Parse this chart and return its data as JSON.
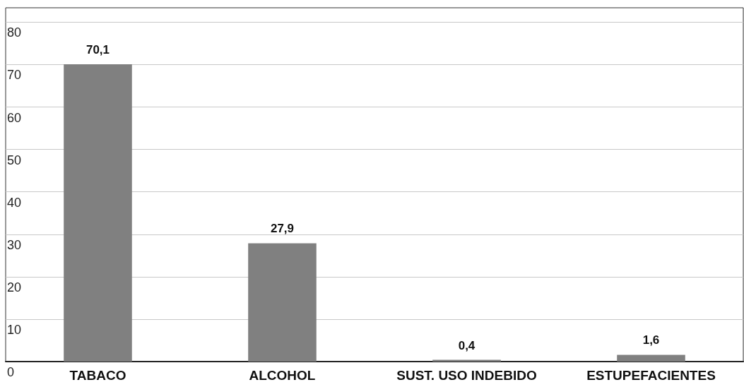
{
  "chart_data": {
    "type": "bar",
    "categories": [
      "TABACO",
      "ALCOHOL",
      "SUST. USO INDEBIDO",
      "ESTUPEFACIENTES"
    ],
    "values": [
      70.1,
      27.9,
      0.4,
      1.6
    ],
    "value_labels": [
      "70,1",
      "27,9",
      "0,4",
      "1,6"
    ],
    "color": "#808080",
    "ylim": [
      0,
      83.4
    ],
    "yticks": [
      0,
      10,
      20,
      30,
      40,
      50,
      60,
      70,
      80
    ],
    "grid": "y"
  }
}
